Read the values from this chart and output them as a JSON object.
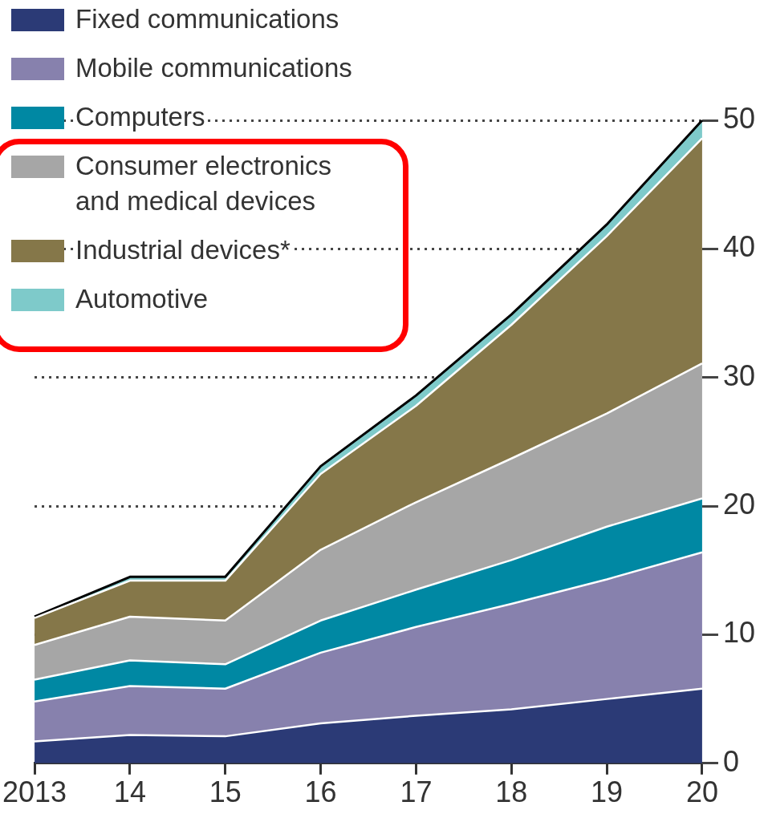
{
  "chart_data": {
    "type": "area",
    "stacked": true,
    "categories": [
      "2013",
      "14",
      "15",
      "16",
      "17",
      "18",
      "19",
      "20"
    ],
    "series": [
      {
        "name": "Fixed communications",
        "color": "#2b3a76",
        "values": [
          1.7,
          2.2,
          2.1,
          3.1,
          3.7,
          4.2,
          5.0,
          5.8
        ]
      },
      {
        "name": "Mobile communications",
        "color": "#8781ad",
        "values": [
          3.1,
          3.8,
          3.7,
          5.5,
          6.9,
          8.2,
          9.3,
          10.6
        ]
      },
      {
        "name": "Computers",
        "color": "#0088a3",
        "values": [
          1.7,
          2.0,
          1.9,
          2.5,
          2.9,
          3.4,
          4.1,
          4.2
        ]
      },
      {
        "name": "Consumer electronics and medical devices",
        "color": "#a6a6a6",
        "values": [
          2.7,
          3.4,
          3.4,
          5.5,
          6.8,
          7.9,
          8.8,
          10.5
        ]
      },
      {
        "name": "Industrial devices*",
        "color": "#857749",
        "values": [
          2.1,
          2.8,
          3.1,
          5.9,
          7.5,
          10.4,
          13.8,
          17.5
        ]
      },
      {
        "name": "Automotive",
        "color": "#7ecaca",
        "values": [
          0.1,
          0.3,
          0.3,
          0.6,
          0.8,
          0.8,
          0.9,
          1.4
        ]
      }
    ],
    "ylim": [
      0,
      50
    ],
    "yticks": [
      0,
      10,
      20,
      30,
      40,
      50
    ],
    "grid": "y",
    "legend": "top left"
  }
}
